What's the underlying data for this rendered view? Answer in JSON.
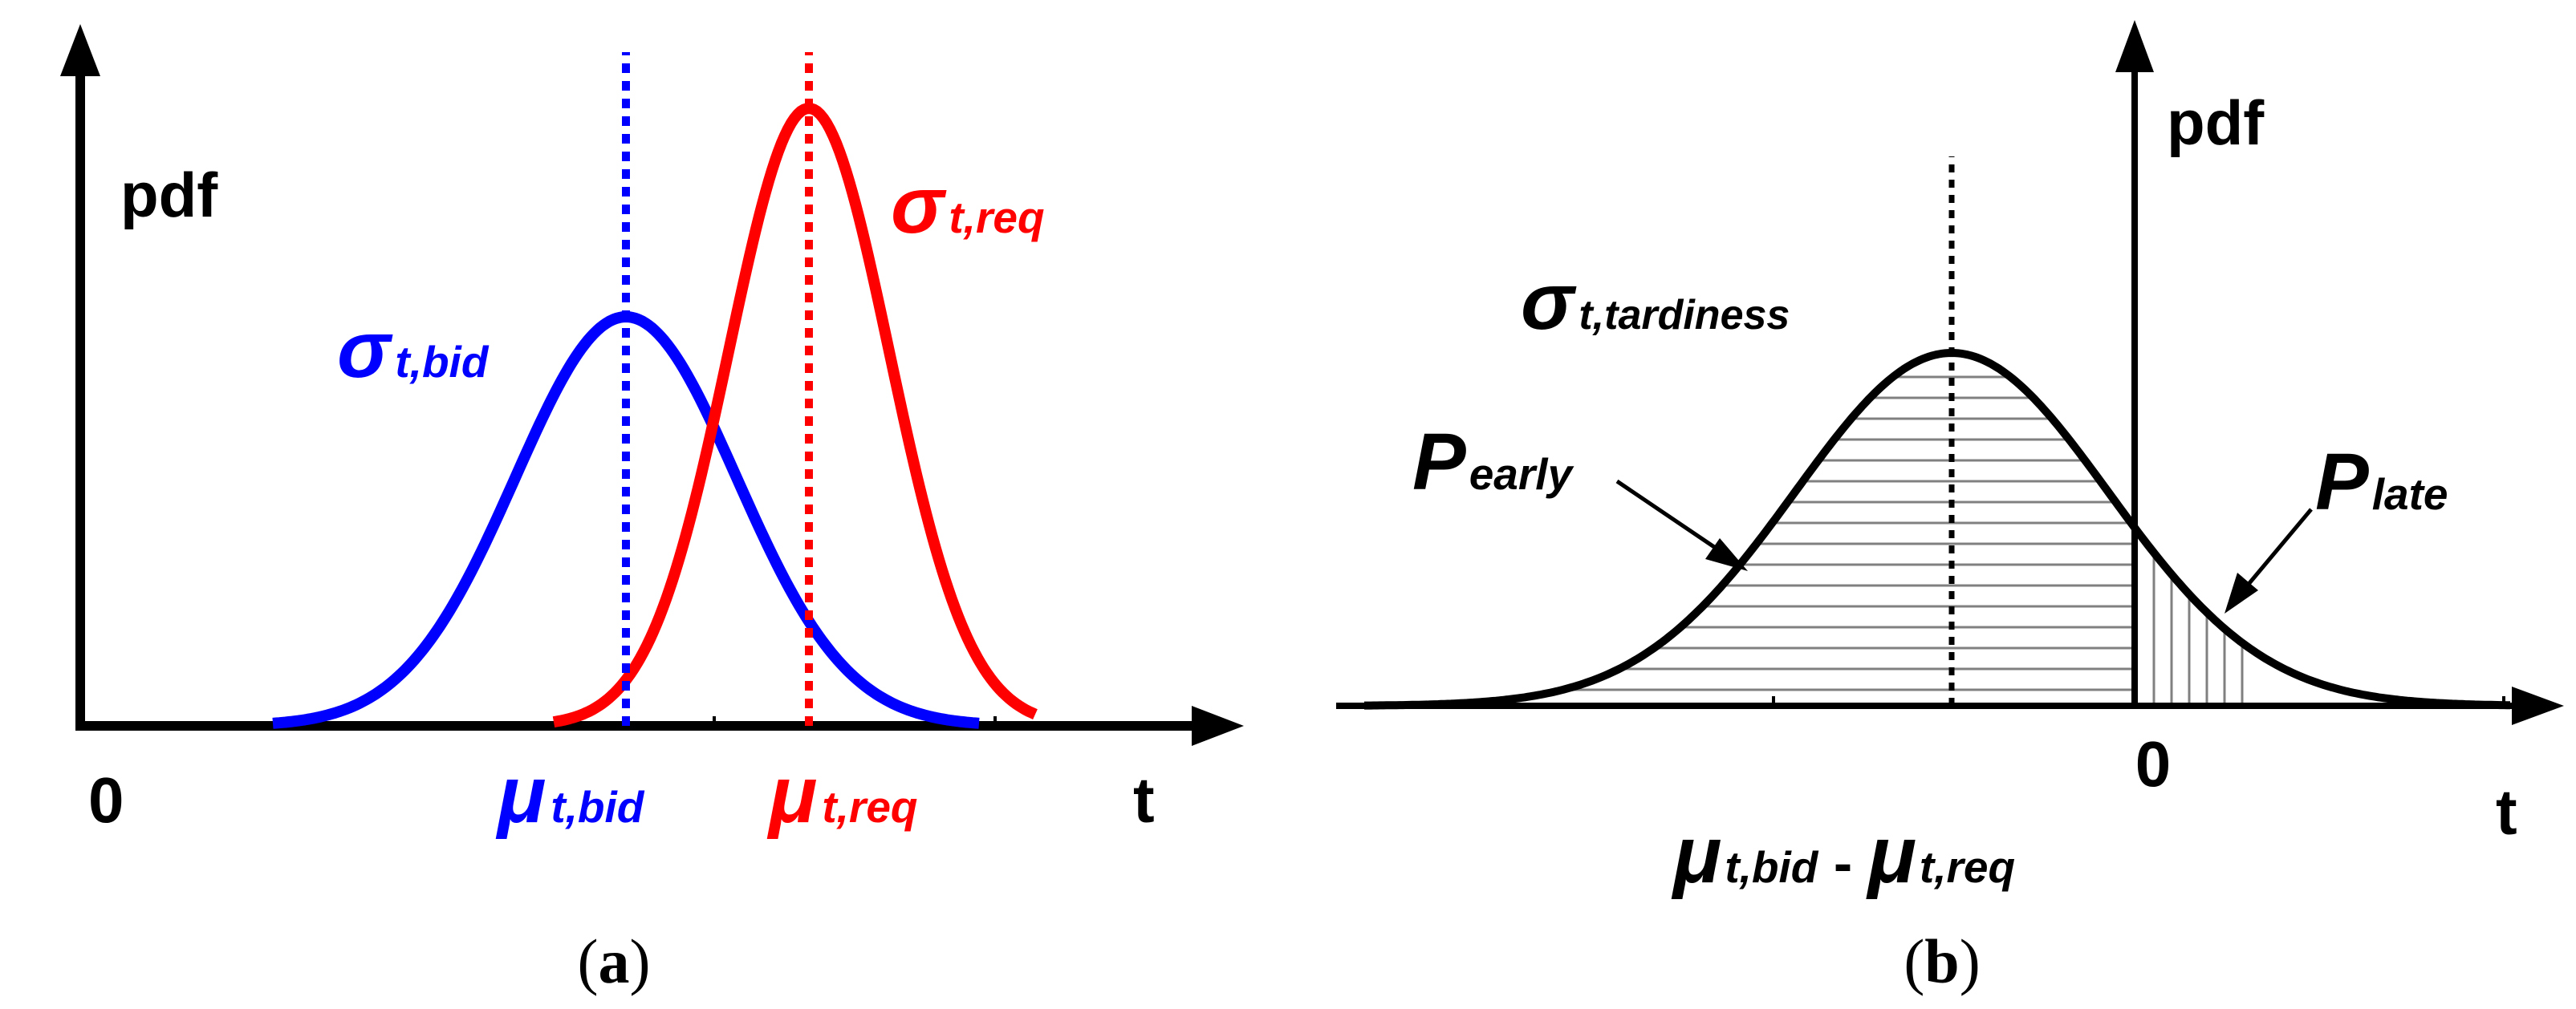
{
  "panel_a": {
    "y_axis_label": "pdf",
    "x_axis_label": "t",
    "origin_label": "0",
    "bid": {
      "sigma_symbol": "σ",
      "sigma_sub": "t,bid",
      "mu_symbol": "μ",
      "mu_sub": "t,bid",
      "color": "#0000ff"
    },
    "req": {
      "sigma_symbol": "σ",
      "sigma_sub": "t,req",
      "mu_symbol": "μ",
      "mu_sub": "t,req",
      "color": "#ff0000"
    },
    "caption": {
      "open": "(",
      "letter": "a",
      "close": ")"
    }
  },
  "panel_b": {
    "y_axis_label": "pdf",
    "x_axis_label": "t",
    "zero_label": "0",
    "sigma": {
      "symbol": "σ",
      "sub": "t,tardiness"
    },
    "p_early": {
      "symbol": "P",
      "sub": "early"
    },
    "p_late": {
      "symbol": "P",
      "sub": "late"
    },
    "mean_label": {
      "mu1": "μ",
      "sub1": "t,bid",
      "minus": " - ",
      "mu2": "μ",
      "sub2": "t,req"
    },
    "caption": {
      "open": "(",
      "letter": "b",
      "close": ")"
    }
  },
  "colors": {
    "axis": "#000000",
    "hatch": "#808080"
  }
}
